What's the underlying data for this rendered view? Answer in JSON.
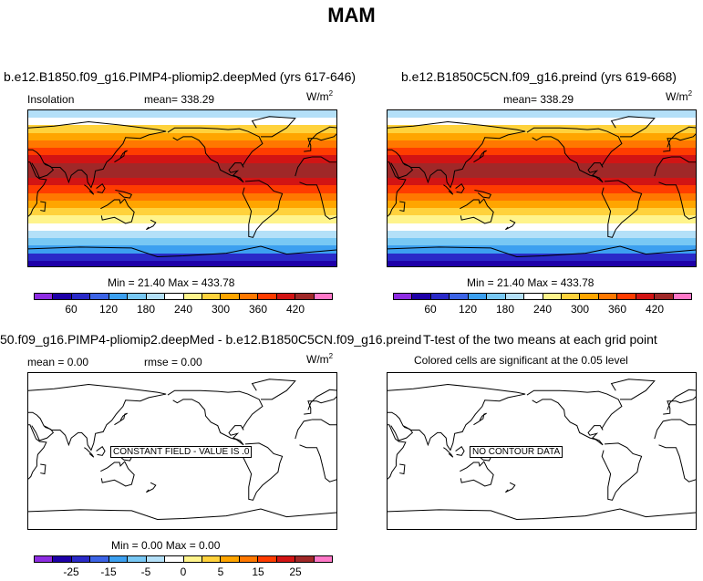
{
  "title": "MAM",
  "colors": [
    "#8e2de2",
    "#1e00a8",
    "#2a2ac8",
    "#3c64e6",
    "#3ca0f0",
    "#78c8f4",
    "#b4e0f8",
    "#ffffff",
    "#fff48c",
    "#ffd23c",
    "#ffa500",
    "#ff7800",
    "#ff3c00",
    "#d21414",
    "#a02828",
    "#ff78c8"
  ],
  "panels": [
    {
      "title": "b.e12.B1850.f09_g16.PIMP4-pliomip2.deepMed (yrs 617-646)",
      "left_label": "Insolation",
      "mean_label": "mean= 338.29",
      "units_base": "W/m",
      "units_exp": "2",
      "minmax": "Min =   21.40 Max = 433.78",
      "ticks": [
        "60",
        "120",
        "180",
        "240",
        "300",
        "360",
        "420"
      ]
    },
    {
      "title": "b.e12.B1850C5CN.f09_g16.preind (yrs 619-668)",
      "mean_label": "mean= 338.29",
      "units_base": "W/m",
      "units_exp": "2",
      "minmax": "Min =   21.40 Max = 433.78",
      "ticks": [
        "60",
        "120",
        "180",
        "240",
        "300",
        "360",
        "420"
      ]
    },
    {
      "title": "50.f09_g16.PIMP4-pliomip2.deepMed - b.e12.B1850C5CN.f09_g16.preind",
      "mean_label": "mean =    0.00",
      "rmse_label": "rmse =    0.00",
      "units_base": "W/m",
      "units_exp": "2",
      "message": "CONSTANT FIELD - VALUE IS .0",
      "minmax": "Min =    0.00 Max =    0.00",
      "ticks": [
        "-25",
        "-15",
        "-5",
        "0",
        "5",
        "15",
        "25"
      ]
    },
    {
      "title": "T-test of the two means at each grid point",
      "subtitle": "Colored cells are significant at the 0.05 level",
      "message": "NO CONTOUR DATA"
    }
  ]
}
